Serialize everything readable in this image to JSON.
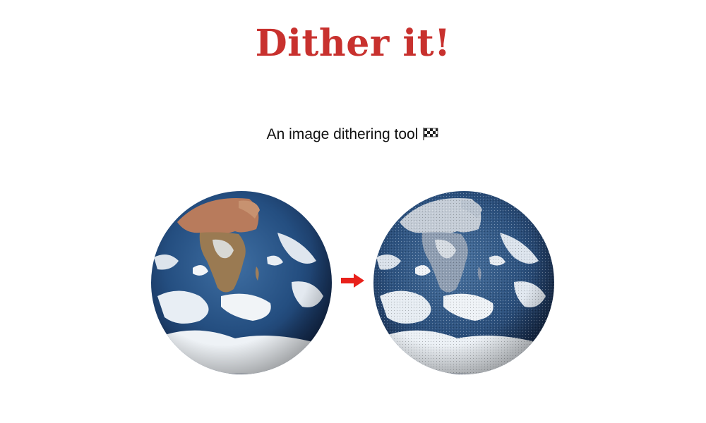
{
  "header": {
    "title": "Dither it!",
    "subtitle": "An image dithering tool"
  },
  "icons": {
    "subtitle_icon": "chequered-flag-icon",
    "between_images": "right-arrow-icon"
  },
  "colors": {
    "title": "#c8312e",
    "arrow": "#e8211b",
    "background": "#ffffff"
  },
  "images": {
    "original": "earth-globe-original",
    "dithered": "earth-globe-dithered"
  }
}
